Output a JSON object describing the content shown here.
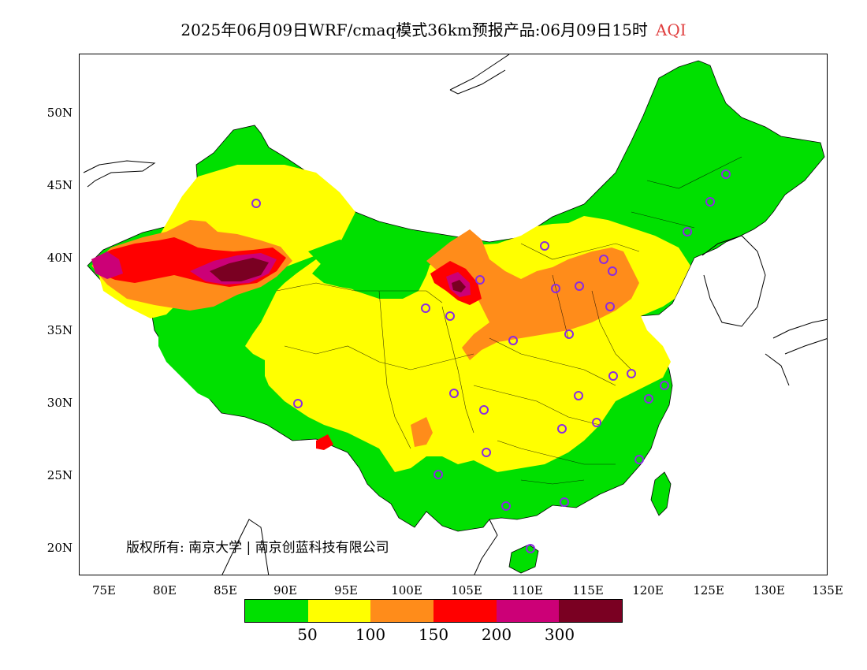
{
  "title": {
    "main": "2025年06月09日WRF/cmaq模式36km预报产品:06月09日15时",
    "variable": "AQI"
  },
  "axes": {
    "y_ticks": [
      "50N",
      "45N",
      "40N",
      "35N",
      "30N",
      "25N",
      "20N"
    ],
    "x_ticks": [
      "75E",
      "80E",
      "85E",
      "90E",
      "95E",
      "100E",
      "105E",
      "110E",
      "115E",
      "120E",
      "125E",
      "130E",
      "135E"
    ]
  },
  "legend": {
    "colors": [
      "#00e000",
      "#ffff00",
      "#ff8c1a",
      "#ff0000",
      "#cc0077",
      "#7a0022"
    ],
    "ticks": [
      "50",
      "100",
      "150",
      "200",
      "300"
    ]
  },
  "copyright": "版权所有: 南京大学 | 南京创蓝科技有限公司",
  "colors": {
    "good": "#00e000",
    "moderate": "#ffff00",
    "sensitive": "#ff8c1a",
    "unhealthy": "#ff0000",
    "very_unhealthy": "#cc0077",
    "hazardous": "#7a0022",
    "city_marker": "#8a2be2"
  }
}
